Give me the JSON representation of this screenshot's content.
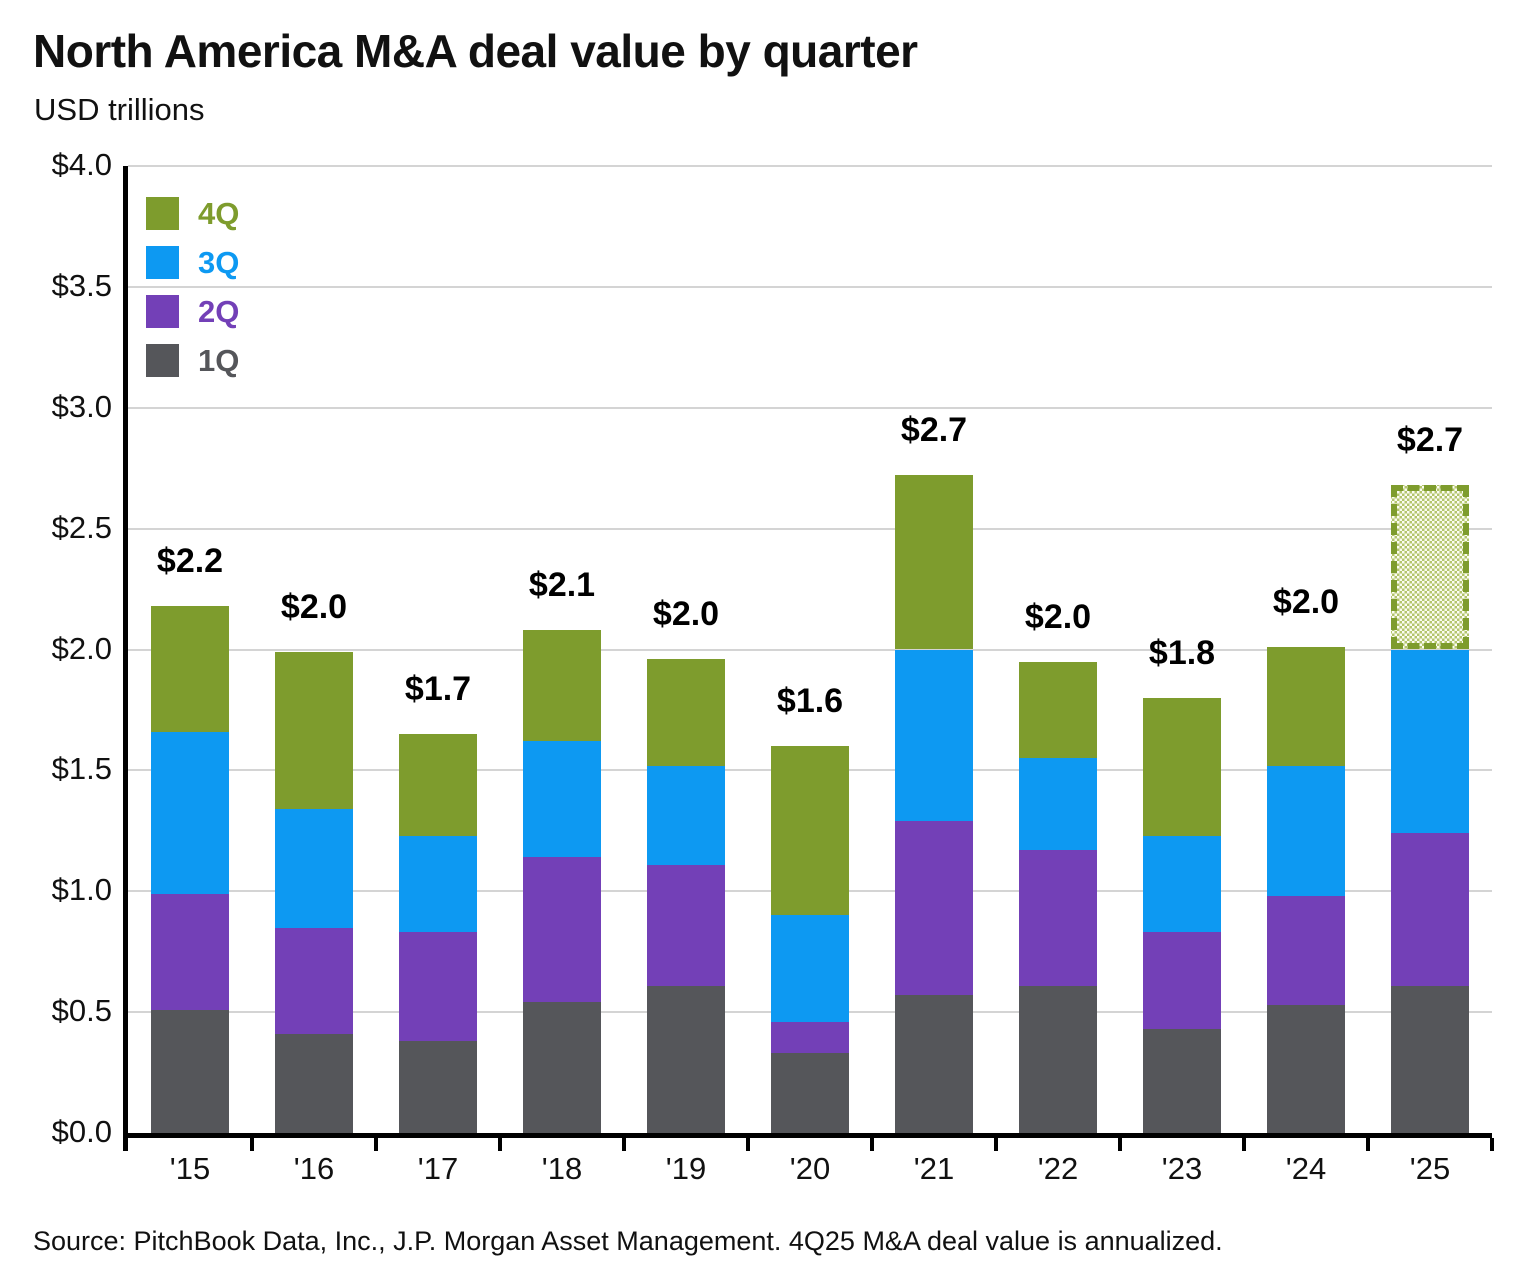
{
  "title": "North America M&A deal value by quarter",
  "subtitle": "USD trillions",
  "source_note": "Source: PitchBook Data, Inc., J.P. Morgan Asset Management. 4Q25 M&A deal value is annualized.",
  "colors": {
    "q4_green": "#7e9c2d",
    "q3_blue": "#0d99f2",
    "q2_purple": "#7340b7",
    "q1_gray": "#55565a",
    "gridline": "#d4d4d4",
    "axis": "#000000",
    "hatch_fill": "#e4ead0",
    "text": "#111111"
  },
  "legend": {
    "position": "top-left",
    "items": [
      {
        "label": "4Q",
        "color": "#7e9c2d"
      },
      {
        "label": "3Q",
        "color": "#0d99f2"
      },
      {
        "label": "2Q",
        "color": "#7340b7"
      },
      {
        "label": "1Q",
        "color": "#55565a"
      }
    ]
  },
  "chart_data": {
    "type": "bar",
    "stacked": true,
    "title": "North America M&A deal value by quarter",
    "ylabel": "USD trillions",
    "xlabel": "",
    "ylim": [
      0,
      4
    ],
    "ytick_step": 0.5,
    "ytick_labels": [
      "$0.0",
      "$0.5",
      "$1.0",
      "$1.5",
      "$2.0",
      "$2.5",
      "$3.0",
      "$3.5",
      "$4.0"
    ],
    "grid": "horizontal",
    "legend_position": "top-left",
    "categories": [
      "'15",
      "'16",
      "'17",
      "'18",
      "'19",
      "'20",
      "'21",
      "'22",
      "'23",
      "'24",
      "'25"
    ],
    "series": [
      {
        "name": "1Q",
        "color": "#55565a",
        "values": [
          0.51,
          0.41,
          0.38,
          0.54,
          0.61,
          0.33,
          0.57,
          0.61,
          0.43,
          0.53,
          0.61
        ]
      },
      {
        "name": "2Q",
        "color": "#7340b7",
        "values": [
          0.48,
          0.44,
          0.45,
          0.6,
          0.5,
          0.13,
          0.72,
          0.56,
          0.4,
          0.45,
          0.63
        ]
      },
      {
        "name": "3Q",
        "color": "#0d99f2",
        "values": [
          0.67,
          0.49,
          0.4,
          0.48,
          0.41,
          0.44,
          0.71,
          0.38,
          0.4,
          0.54,
          0.76
        ]
      },
      {
        "name": "4Q",
        "color": "#7e9c2d",
        "values": [
          0.52,
          0.65,
          0.42,
          0.46,
          0.44,
          0.7,
          0.72,
          0.4,
          0.57,
          0.49,
          0.68
        ]
      }
    ],
    "totals": [
      2.18,
      1.99,
      1.65,
      2.08,
      1.96,
      1.6,
      2.72,
      1.95,
      1.8,
      2.01,
      2.68
    ],
    "total_labels": [
      "$2.2",
      "$2.0",
      "$1.7",
      "$2.1",
      "$2.0",
      "$1.6",
      "$2.7",
      "$2.0",
      "$1.8",
      "$2.0",
      "$2.7"
    ],
    "annotations": {
      "annualized_segment": {
        "category": "'25",
        "series": "4Q",
        "style": "hatched-dashed-outline",
        "note": "4Q25 M&A deal value is annualized"
      }
    }
  }
}
